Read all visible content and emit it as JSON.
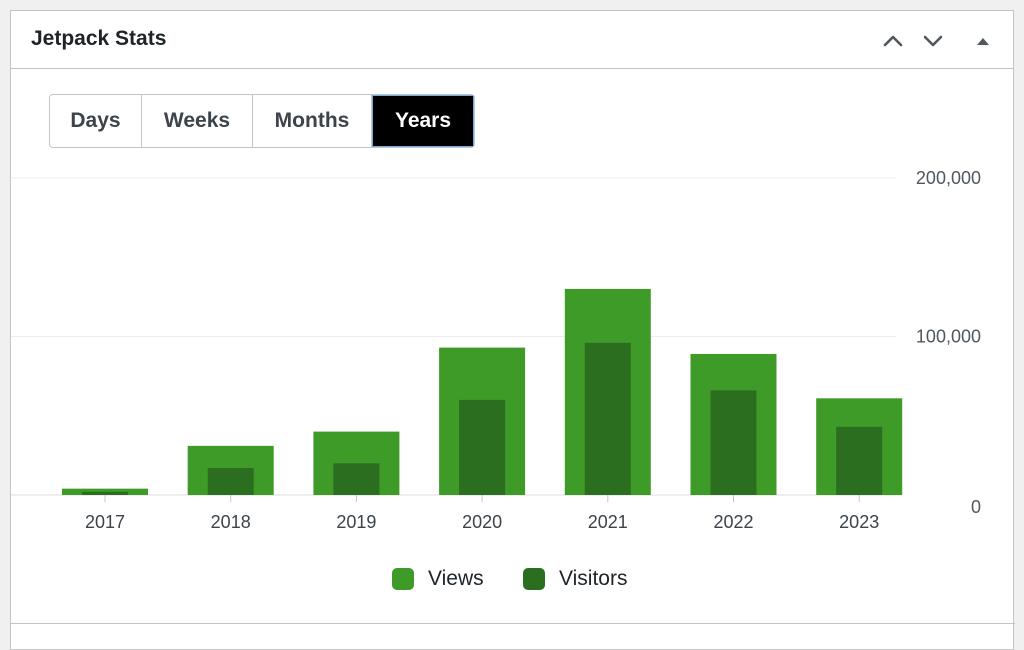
{
  "widget": {
    "title": "Jetpack Stats",
    "controls": [
      "chevron-up-icon",
      "chevron-down-icon",
      "triangle-up-icon"
    ]
  },
  "periods": [
    {
      "label": "Days",
      "active": false
    },
    {
      "label": "Weeks",
      "active": false
    },
    {
      "label": "Months",
      "active": false
    },
    {
      "label": "Years",
      "active": true
    }
  ],
  "chart_data": {
    "type": "bar",
    "categories": [
      "2017",
      "2018",
      "2019",
      "2020",
      "2021",
      "2022",
      "2023"
    ],
    "series": [
      {
        "name": "Views",
        "color": "#3f9b28",
        "values": [
          4000,
          31000,
          40000,
          93000,
          130000,
          89000,
          61000
        ]
      },
      {
        "name": "Visitors",
        "color": "#2c6e20",
        "values": [
          2000,
          17000,
          20000,
          60000,
          96000,
          66000,
          43000
        ]
      }
    ],
    "ylim": [
      0,
      200000
    ],
    "yticks": [
      "200,000",
      "100,000",
      "0"
    ],
    "ytick_values": [
      200000,
      100000,
      0
    ],
    "grid": true,
    "legend": "bottom-center"
  }
}
